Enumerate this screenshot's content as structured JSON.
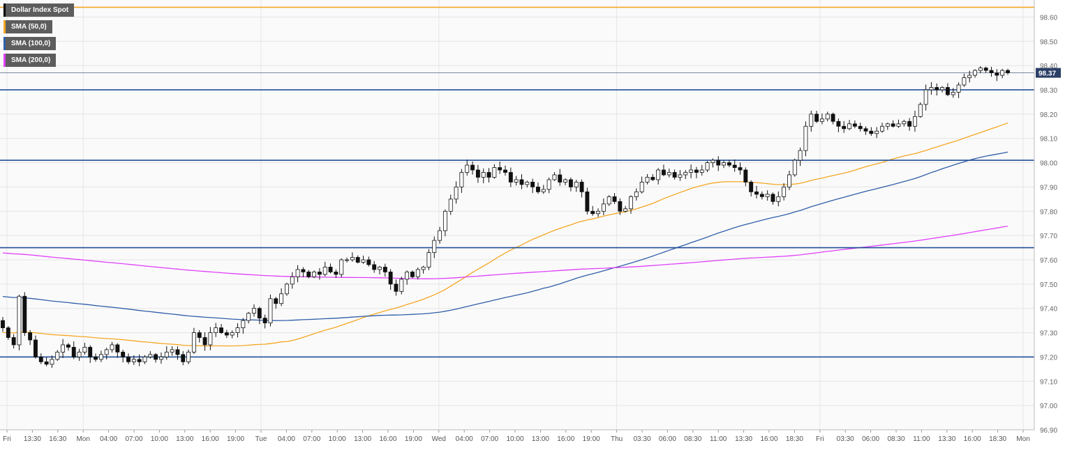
{
  "chart_data": {
    "type": "candlestick",
    "title": "",
    "ylim": [
      96.9,
      98.67
    ],
    "y_ticks": [
      96.9,
      97.0,
      97.1,
      97.2,
      97.3,
      97.4,
      97.5,
      97.6,
      97.7,
      97.8,
      97.9,
      98.0,
      98.1,
      98.2,
      98.3,
      98.4,
      98.5,
      98.6
    ],
    "y_tick_labels": [
      "96.90",
      "97.00",
      "97.10",
      "97.20",
      "97.30",
      "97.40",
      "97.50",
      "97.60",
      "97.70",
      "97.80",
      "97.90",
      "98.00",
      "98.10",
      "98.20",
      "98.30",
      "98.40",
      "98.50",
      "98.60"
    ],
    "x_tick_labels": [
      "Fri",
      "13:30",
      "16:30",
      "Mon",
      "04:00",
      "07:00",
      "10:00",
      "13:00",
      "16:00",
      "19:00",
      "Tue",
      "04:00",
      "07:00",
      "10:00",
      "13:00",
      "16:00",
      "19:00",
      "Wed",
      "04:00",
      "07:00",
      "10:00",
      "13:00",
      "16:00",
      "19:00",
      "Thu",
      "03:30",
      "06:00",
      "08:30",
      "11:00",
      "13:30",
      "16:00",
      "18:30",
      "Fri",
      "03:30",
      "06:00",
      "08:30",
      "11:00",
      "13:30",
      "16:00",
      "18:30",
      "Mon"
    ],
    "legend": [
      {
        "name": "Dollar Index Spot",
        "color": "#000000"
      },
      {
        "name": "SMA (50,0)",
        "color": "#f5a623"
      },
      {
        "name": "SMA (100,0)",
        "color": "#2f5ea8"
      },
      {
        "name": "SMA (200,0)",
        "color": "#e040fb"
      }
    ],
    "last_price_label": "98.37",
    "last_price": 98.37,
    "horizontal_levels": [
      {
        "value": 98.64,
        "color": "#f5a623"
      },
      {
        "value": 98.3,
        "color": "#1f4e99"
      },
      {
        "value": 98.01,
        "color": "#1f4e99"
      },
      {
        "value": 97.65,
        "color": "#1f4e99"
      },
      {
        "value": 97.2,
        "color": "#1f4e99"
      }
    ],
    "candles_close": [
      97.32,
      97.28,
      97.25,
      97.45,
      97.3,
      97.27,
      97.2,
      97.18,
      97.17,
      97.19,
      97.22,
      97.25,
      97.24,
      97.2,
      97.22,
      97.24,
      97.2,
      97.19,
      97.21,
      97.23,
      97.25,
      97.22,
      97.2,
      97.18,
      97.19,
      97.18,
      97.2,
      97.21,
      97.19,
      97.2,
      97.22,
      97.23,
      97.21,
      97.18,
      97.22,
      97.3,
      97.28,
      97.25,
      97.3,
      97.32,
      97.3,
      97.29,
      97.3,
      97.32,
      97.35,
      97.38,
      97.4,
      97.36,
      97.34,
      97.44,
      97.42,
      97.46,
      97.5,
      97.53,
      97.56,
      97.55,
      97.53,
      97.55,
      97.54,
      97.57,
      97.55,
      97.54,
      97.6,
      97.6,
      97.61,
      97.59,
      97.6,
      97.58,
      97.56,
      97.57,
      97.55,
      97.5,
      97.47,
      97.52,
      97.55,
      97.53,
      97.56,
      97.57,
      97.63,
      97.68,
      97.72,
      97.8,
      97.85,
      97.9,
      97.96,
      97.99,
      97.97,
      97.94,
      97.96,
      97.94,
      97.98,
      97.97,
      97.96,
      97.92,
      97.93,
      97.91,
      97.92,
      97.9,
      97.88,
      97.89,
      97.93,
      97.95,
      97.92,
      97.93,
      97.9,
      97.92,
      97.88,
      97.8,
      97.79,
      97.8,
      97.83,
      97.86,
      97.84,
      97.8,
      97.81,
      97.86,
      97.88,
      97.92,
      97.94,
      97.93,
      97.97,
      97.95,
      97.96,
      97.94,
      97.95,
      97.96,
      97.97,
      97.96,
      97.97,
      98.0,
      98.01,
      97.99,
      98.0,
      97.99,
      97.98,
      97.97,
      97.92,
      97.88,
      97.87,
      97.86,
      97.87,
      97.84,
      97.86,
      97.9,
      97.95,
      98.01,
      98.05,
      98.15,
      98.2,
      98.17,
      98.18,
      98.2,
      98.17,
      98.15,
      98.14,
      98.16,
      98.15,
      98.14,
      98.13,
      98.12,
      98.13,
      98.15,
      98.16,
      98.15,
      98.16,
      98.17,
      98.15,
      98.19,
      98.24,
      98.3,
      98.31,
      98.3,
      98.31,
      98.28,
      98.29,
      98.32,
      98.35,
      98.36,
      98.38,
      98.39,
      98.38,
      98.37,
      98.36,
      98.38,
      98.37
    ]
  }
}
